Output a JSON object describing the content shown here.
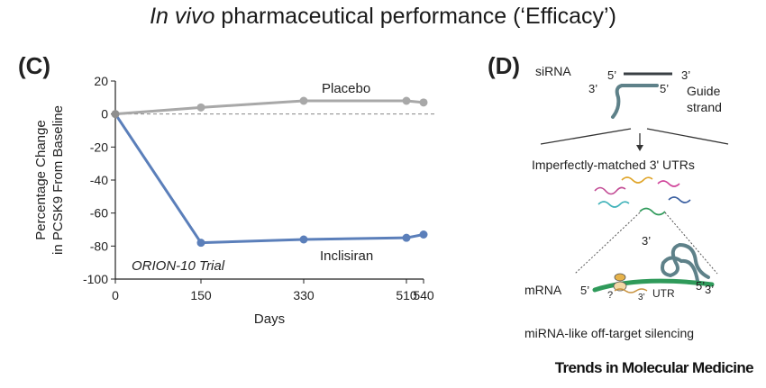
{
  "header": {
    "title_italic": "In vivo",
    "title_rest": " pharmaceutical performance (‘Efficacy’)"
  },
  "panel_c": {
    "letter": "(C)"
  },
  "panel_d": {
    "letter": "(D)",
    "sirna_label": "siRNA",
    "top_5": "5’",
    "top_3": "3’",
    "bottom_3": "3’",
    "bottom_5": "5’",
    "guide_label_1": "Guide",
    "guide_label_2": "strand",
    "utr_text": "Imperfectly-matched  3' UTRs",
    "mrna_label": "mRNA",
    "mrna_5": "5’",
    "mrna_3": "3’",
    "mrna_5_end": "5’",
    "loop_3": "3’",
    "qmark": "?",
    "small_3": "3’",
    "utr_label": "UTR",
    "caption": "miRNA-like  off-target silencing"
  },
  "credit": "Trends in Molecular Medicine",
  "chart_data": {
    "type": "line",
    "title": "",
    "xlabel": "Days",
    "ylabel_line1": "Percentage Change",
    "ylabel_line2": "in PCSK9 From Baseline",
    "x_ticks": [
      0,
      150,
      330,
      510,
      540
    ],
    "y_ticks": [
      20,
      0,
      -20,
      -40,
      -60,
      -80,
      -100
    ],
    "xlim": [
      0,
      540
    ],
    "ylim": [
      -100,
      20
    ],
    "reference_line_y": 0,
    "annotation": "ORION-10 Trial",
    "series": [
      {
        "name": "Placebo",
        "color": "#a8a8a8",
        "x": [
          0,
          150,
          330,
          510,
          540
        ],
        "y": [
          0,
          4,
          8,
          8,
          7
        ]
      },
      {
        "name": "Inclisiran",
        "color": "#5b7fba",
        "x": [
          0,
          150,
          330,
          510,
          540
        ],
        "y": [
          0,
          -78,
          -76,
          -75,
          -73
        ]
      }
    ]
  }
}
